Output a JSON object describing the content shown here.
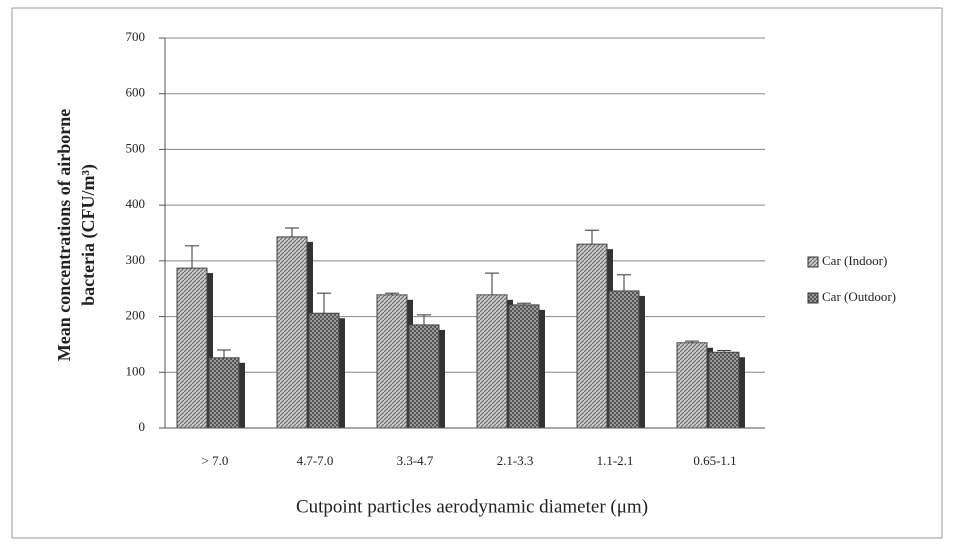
{
  "chart_data": {
    "type": "bar",
    "y_title": [
      "Mean concentrations of airborne",
      "bacteria (CFU/m³)"
    ],
    "x_title": "Cutpoint particles aerodynamic diameter (μm)",
    "categories": [
      "> 7.0",
      "4.7-7.0",
      "3.3-4.7",
      "2.1-3.3",
      "1.1-2.1",
      "0.65-1.1"
    ],
    "series": [
      {
        "name": "Car (Indoor)",
        "color": "#c8c8c8",
        "values": [
          287,
          343,
          239,
          239,
          330,
          153
        ],
        "errors": [
          40,
          16,
          3,
          39,
          25,
          3
        ]
      },
      {
        "name": "Car (Outdoor)",
        "color": "#9a9a9a",
        "values": [
          126,
          206,
          185,
          221,
          246,
          136
        ],
        "errors": [
          14,
          36,
          18,
          3,
          29,
          3
        ]
      }
    ],
    "ylim": [
      0,
      700
    ],
    "yticks": [
      0,
      100,
      200,
      300,
      400,
      500,
      600,
      700
    ],
    "grid": true,
    "legend": "right"
  }
}
